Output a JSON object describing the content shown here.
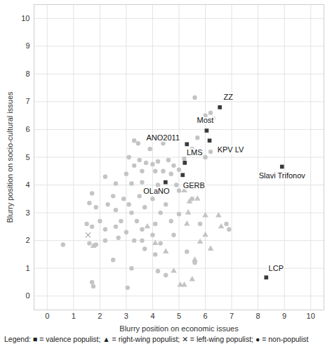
{
  "chart_data": {
    "type": "scatter",
    "x_label": "Blurry position on economic issues",
    "y_label": "Blurry position on socio-cultural issues",
    "caption": "Legend: ■ = valence populist; ▲ = right-wing populist; ✕ = left-wing populist; ● = non-populist",
    "xlim": [
      -0.5,
      10.5
    ],
    "ylim": [
      -0.5,
      10.5
    ],
    "xticks": [
      0,
      1,
      2,
      3,
      4,
      5,
      6,
      7,
      8,
      9,
      10
    ],
    "yticks": [
      0,
      1,
      2,
      3,
      4,
      5,
      6,
      7,
      8,
      9,
      10
    ],
    "grid": true,
    "series": [
      {
        "name": "non-populist",
        "color": "#c4c4c4",
        "marker": "circle",
        "x": [
          5.6,
          6.0,
          6.2,
          6.3,
          3.3,
          3.45,
          3.9,
          4.3,
          4.4,
          3.1,
          3.5,
          3.75,
          4.0,
          4.2,
          4.6,
          4.8,
          3.3,
          3.0,
          3.6,
          4.1,
          4.4,
          4.7,
          5.0,
          5.2,
          6.0,
          6.2,
          5.7,
          5.5,
          2.2,
          2.6,
          3.2,
          3.6,
          4.2,
          4.9,
          5.3,
          5.0,
          1.7,
          2.5,
          2.9,
          3.5,
          4.0,
          1.6,
          2.3,
          3.1,
          3.7,
          4.5,
          5.5,
          1.85,
          2.6,
          3.2,
          4.3,
          5.0,
          6.8,
          6.9,
          1.5,
          2.0,
          2.8,
          3.4,
          4.1,
          4.7,
          5.8,
          1.7,
          2.2,
          2.6,
          3.0,
          3.6,
          4.0,
          4.8,
          0.6,
          1.6,
          1.85,
          2.2,
          2.7,
          3.3,
          3.6,
          3.7,
          4.1,
          4.3,
          5.3,
          5.6,
          2.5,
          3.2,
          4.2,
          1.7,
          1.75,
          3.05,
          4.5
        ],
        "y": [
          7.15,
          6.5,
          6.6,
          6.4,
          5.6,
          5.5,
          5.3,
          5.65,
          5.5,
          5.0,
          4.9,
          4.8,
          4.75,
          4.85,
          4.9,
          4.7,
          4.7,
          4.4,
          4.5,
          4.5,
          4.5,
          4.4,
          4.55,
          4.95,
          5.0,
          5.2,
          5.7,
          5.3,
          4.3,
          4.05,
          4.05,
          4.1,
          4.0,
          4.0,
          3.95,
          3.8,
          3.7,
          3.6,
          3.5,
          3.6,
          3.5,
          3.35,
          3.3,
          3.3,
          3.2,
          3.3,
          3.5,
          3.2,
          3.1,
          3.0,
          3.0,
          2.95,
          2.6,
          2.4,
          2.6,
          2.7,
          2.7,
          2.7,
          2.6,
          2.7,
          2.6,
          2.5,
          2.4,
          2.5,
          2.3,
          2.4,
          2.2,
          2.2,
          1.85,
          1.9,
          1.85,
          2.0,
          2.1,
          2.0,
          2.0,
          1.7,
          1.5,
          1.9,
          1.6,
          1.2,
          1.3,
          1.0,
          0.9,
          0.5,
          0.35,
          0.3,
          0.75
        ]
      },
      {
        "name": "right-wing populist",
        "color": "#c4c4c4",
        "marker": "triangle",
        "x": [
          5.2,
          5.4,
          5.7,
          5.35,
          6.0,
          5.3,
          6.5,
          6.6,
          6.0,
          5.8,
          1.75,
          4.5,
          5.6,
          4.8,
          5.05,
          5.2,
          5.5,
          6.2,
          3.8,
          4.1
        ],
        "y": [
          3.8,
          3.4,
          3.5,
          3.0,
          2.9,
          2.6,
          2.9,
          2.5,
          2.2,
          1.95,
          1.8,
          1.6,
          1.3,
          0.9,
          0.4,
          0.4,
          0.6,
          1.7,
          2.5,
          1.9
        ]
      },
      {
        "name": "left-wing populist",
        "color": "#b0b0b0",
        "marker": "times",
        "x": [
          1.55
        ],
        "y": [
          2.2
        ]
      },
      {
        "name": "valence populist",
        "color": "#3a3a3a",
        "marker": "square",
        "x": [
          6.55,
          6.05,
          6.16,
          5.3,
          5.22,
          5.14,
          4.49,
          8.91,
          8.31
        ],
        "y": [
          6.8,
          5.96,
          5.6,
          5.47,
          4.8,
          4.36,
          4.1,
          4.66,
          0.67
        ],
        "labels": [
          "ZZ",
          "Most",
          "KPV LV",
          "ANO2011",
          "LMS",
          "GERB",
          "OLaNO",
          "Slavi Trifonov",
          "LCP"
        ]
      }
    ]
  }
}
